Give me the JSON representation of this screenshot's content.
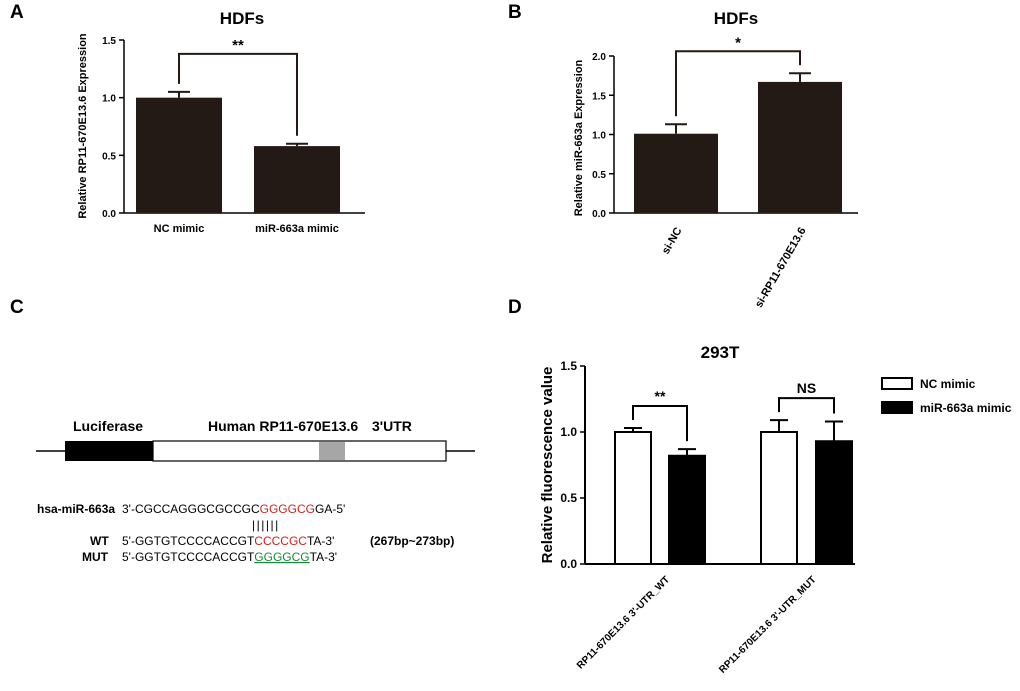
{
  "panels": [
    {
      "letter": "A"
    },
    {
      "letter": "B"
    },
    {
      "letter": "C"
    },
    {
      "letter": "D"
    }
  ],
  "chart_data": [
    {
      "panel": "A",
      "type": "bar",
      "title": "HDFs",
      "xlabel": "",
      "ylabel": "Relative RP11-670E13.6 Expression",
      "categories": [
        "NC mimic",
        "miR-663a mimic"
      ],
      "values": [
        1.0,
        0.58
      ],
      "errors": [
        0.05,
        0.02
      ],
      "ylim": [
        0,
        1.5
      ],
      "yticks": [
        "0.0",
        "0.5",
        "1.0",
        "1.5"
      ],
      "bar_color": "#231a15",
      "significance": [
        {
          "from": 0,
          "to": 1,
          "label": "**"
        }
      ]
    },
    {
      "panel": "B",
      "type": "bar",
      "title": "HDFs",
      "xlabel": "",
      "ylabel": "Relative miR-663a Expression",
      "categories": [
        "si-NC",
        "si-RP11-670E13.6"
      ],
      "values": [
        1.01,
        1.67
      ],
      "errors": [
        0.12,
        0.11
      ],
      "ylim": [
        0,
        2.0
      ],
      "yticks": [
        "0.0",
        "0.5",
        "1.0",
        "1.5",
        "2.0"
      ],
      "bar_color": "#231a15",
      "significance": [
        {
          "from": 0,
          "to": 1,
          "label": "*"
        }
      ]
    },
    {
      "panel": "D",
      "type": "bar",
      "title": "293T",
      "xlabel": "",
      "ylabel": "Relative fluorescence value",
      "categories": [
        "RP11-670E13.6 3'-UTR_WT",
        "RP11-670E13.6 3'-UTR_MUT"
      ],
      "series": [
        {
          "name": "NC mimic",
          "values": [
            1.0,
            1.0
          ],
          "errors": [
            0.03,
            0.09
          ],
          "color": "#ffffff"
        },
        {
          "name": "miR-663a mimic",
          "values": [
            0.82,
            0.93
          ],
          "errors": [
            0.05,
            0.15
          ],
          "color": "#000000"
        }
      ],
      "ylim": [
        0,
        1.5
      ],
      "yticks": [
        "0.0",
        "0.5",
        "1.0",
        "1.5"
      ],
      "legend_position": "right",
      "significance": [
        {
          "group": 0,
          "label": "**"
        },
        {
          "group": 1,
          "label": "NS"
        }
      ]
    }
  ],
  "construct": {
    "luciferase_label": "Luciferase",
    "gene_label": "Human RP11-670E13.6",
    "utr_label": "3'UTR",
    "mirna_name": "hsa-miR-663a",
    "mirna_prefix": "3'-CGCCAGGGCGCCGC",
    "mirna_seed": "GGGGCG",
    "mirna_suffix": "GA-5'",
    "pairing": "||||||",
    "wt_label": "WT",
    "wt_prefix": "5'-GGTGTCCCCACCGT",
    "wt_site": "CCCCGC",
    "wt_suffix": "TA-3'",
    "mut_label": "MUT",
    "mut_prefix": "5'-GGTGTCCCCACCGT",
    "mut_site": "GGGGCG",
    "mut_suffix": "TA-3'",
    "position": "(267bp~273bp)",
    "seed_color": "#d0231c",
    "mut_color": "#1a8a3a"
  }
}
